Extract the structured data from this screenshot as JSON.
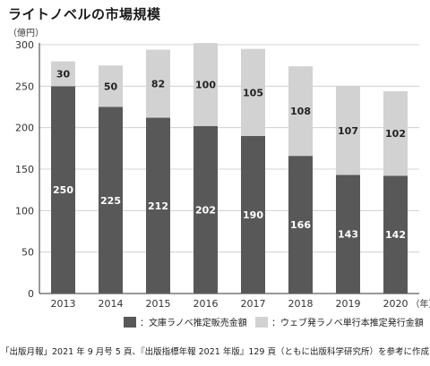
{
  "chart_data": {
    "type": "bar",
    "stacked": true,
    "title": "ライトノベルの市場規模",
    "ylabel": "（億円）",
    "xunit": "（年）",
    "categories": [
      "2013",
      "2014",
      "2015",
      "2016",
      "2017",
      "2018",
      "2019",
      "2020"
    ],
    "ylim": [
      0,
      300
    ],
    "yticks": [
      0,
      50,
      100,
      150,
      200,
      250,
      300
    ],
    "grid": true,
    "legend_position": "bottom",
    "series": [
      {
        "name": "：文庫ラノベ推定販売金額",
        "values": [
          250,
          225,
          212,
          202,
          190,
          166,
          143,
          142
        ],
        "color": "#585858",
        "label_color": "#ffffff"
      },
      {
        "name": "：ウェブ発ラノベ単行本推定発行金額",
        "values": [
          30,
          50,
          82,
          100,
          105,
          108,
          107,
          102
        ],
        "color": "#d2d2d2",
        "label_color": "#222222"
      }
    ],
    "source": "「出版月報」2021 年 9 月号 5 頁、『出版指標年報 2021 年版』129 頁（ともに出版科学研究所）を参考に作成"
  }
}
